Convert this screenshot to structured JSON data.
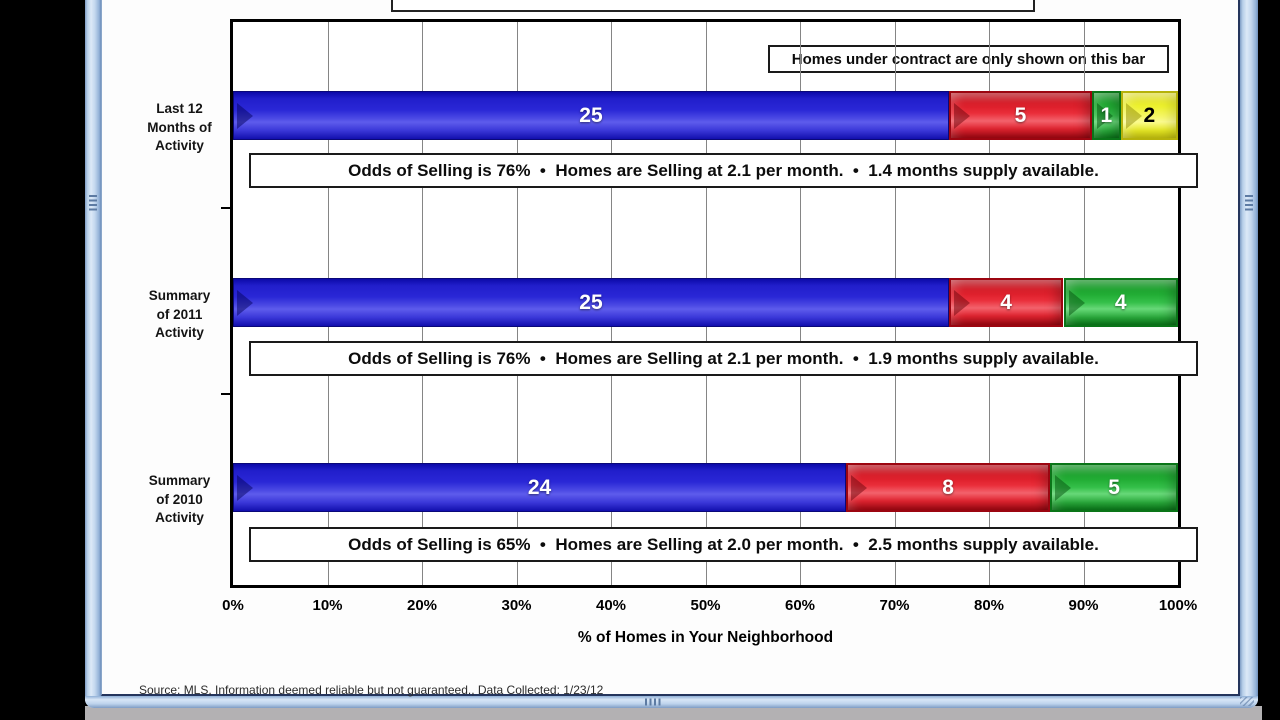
{
  "window": {
    "scrollbar_color": "#b7cfe9",
    "desktop_strip_color": "#b3b1b3"
  },
  "footer": {
    "source": "Source: MLS, Information deemed reliable but not guaranteed., Data Collected: 1/23/12"
  },
  "chart_data": {
    "type": "bar",
    "orientation": "horizontal",
    "stacked": true,
    "grid": "vertical",
    "annotation": "Homes under contract are only shown on this bar",
    "xlabel": "% of Homes in Your Neighborhood",
    "xlim": [
      0,
      100
    ],
    "x_ticks": [
      "0%",
      "10%",
      "20%",
      "30%",
      "40%",
      "50%",
      "60%",
      "70%",
      "80%",
      "90%",
      "100%"
    ],
    "categories": [
      "Last 12 Months of Activity",
      "Summary of 2011 Activity",
      "Summary of 2010 Activity"
    ],
    "category_label_lines": [
      [
        "Last 12",
        "Months of",
        "Activity"
      ],
      [
        "Summary",
        "of 2011",
        "Activity"
      ],
      [
        "Summary",
        "of 2010",
        "Activity"
      ]
    ],
    "colors": {
      "blue": "#1c19d2",
      "red": "#e01220",
      "green": "#13a128",
      "yellow": "#efec1c"
    },
    "rows": [
      {
        "segments": [
          {
            "count": 25,
            "color": "blue"
          },
          {
            "count": 5,
            "color": "red"
          },
          {
            "count": 1,
            "color": "green"
          },
          {
            "count": 2,
            "color": "yellow"
          }
        ],
        "caption": "Odds of Selling is 76%  •  Homes are Selling at 2.1 per month.  •  1.4 months supply available."
      },
      {
        "segments": [
          {
            "count": 25,
            "color": "blue"
          },
          {
            "count": 4,
            "color": "red"
          },
          {
            "count": 4,
            "color": "green"
          }
        ],
        "caption": "Odds of Selling is 76%  •  Homes are Selling at 2.1 per month.  •  1.9 months supply available."
      },
      {
        "segments": [
          {
            "count": 24,
            "color": "blue"
          },
          {
            "count": 8,
            "color": "red"
          },
          {
            "count": 5,
            "color": "green"
          }
        ],
        "caption": "Odds of Selling is 65%  •  Homes are Selling at 2.0 per month.  •  2.5 months supply available."
      }
    ]
  }
}
